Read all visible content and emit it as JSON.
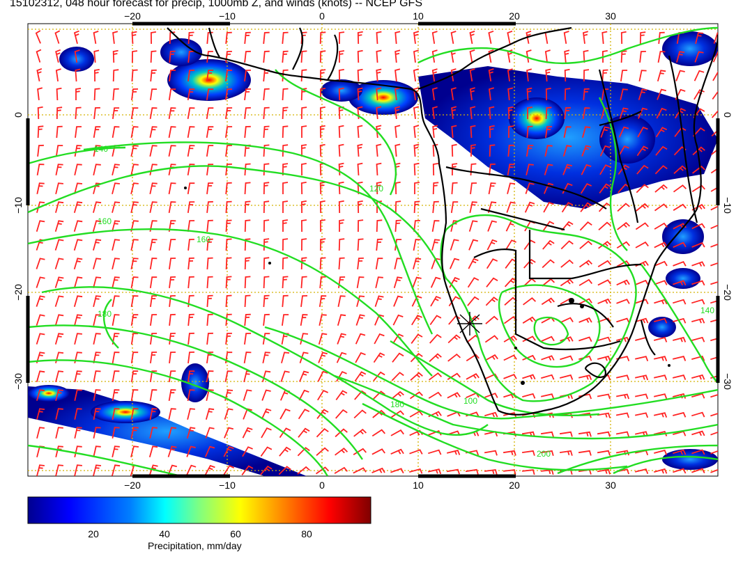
{
  "title": "15102312, 048 hour forecast for precip, 1000mb Z, and winds (knots) -- NCEP GFS",
  "map": {
    "lon_ticks": [
      "−20",
      "−10",
      "0",
      "10",
      "20",
      "30"
    ],
    "lat_ticks": [
      "0",
      "−10",
      "−20",
      "−30"
    ],
    "contour_labels": [
      "140",
      "160",
      "180",
      "120",
      "100",
      "200"
    ],
    "colors": {
      "contour": "#22dd22",
      "barb": "#ff2222",
      "coast": "#000000",
      "grid": "#d4b200",
      "precip_low": "#00007f",
      "precip_mid": "#00c8c8",
      "precip_high": "#7f0000"
    }
  },
  "colorbar": {
    "label": "Precipitation, mm/day",
    "ticks": [
      "20",
      "40",
      "60",
      "80"
    ],
    "range": [
      0,
      100
    ],
    "colors": [
      "#00008f",
      "#0000ff",
      "#0080ff",
      "#00ffff",
      "#80ff80",
      "#ffff00",
      "#ff8000",
      "#ff0000",
      "#800000"
    ]
  }
}
